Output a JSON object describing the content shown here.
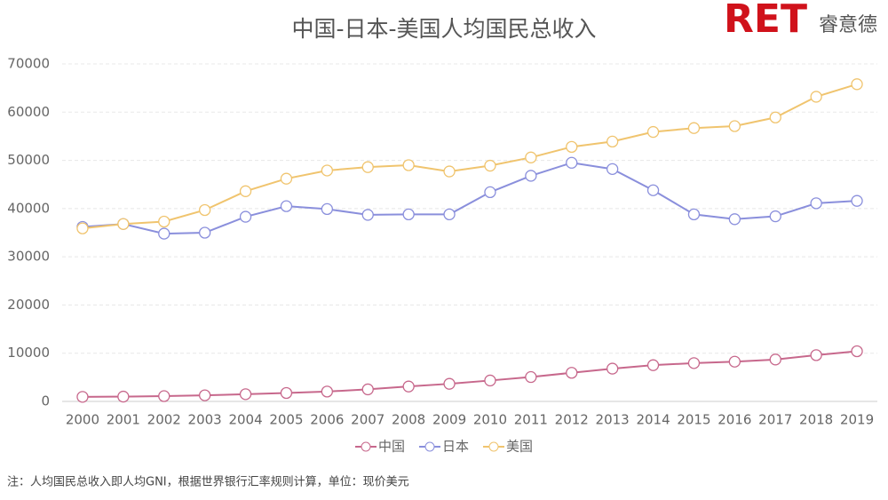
{
  "chart_data": {
    "type": "line",
    "title": "中国-日本-美国人均国民总收入",
    "logo": {
      "brand": "RET",
      "name": "睿意德"
    },
    "note": "注：人均国民总收入即人均GNI，根据世界银行汇率规则计算，单位：现价美元",
    "categories": [
      "2000",
      "2001",
      "2002",
      "2003",
      "2004",
      "2005",
      "2006",
      "2007",
      "2008",
      "2009",
      "2010",
      "2011",
      "2012",
      "2013",
      "2014",
      "2015",
      "2016",
      "2017",
      "2018",
      "2019"
    ],
    "series": [
      {
        "name": "中国",
        "color": "#c7688c",
        "values": [
          950,
          1000,
          1100,
          1270,
          1500,
          1750,
          2050,
          2500,
          3100,
          3650,
          4340,
          5060,
          5940,
          6800,
          7520,
          7950,
          8250,
          8690,
          9600,
          10410
        ]
      },
      {
        "name": "日本",
        "color": "#8a8fdc",
        "values": [
          36200,
          36800,
          34800,
          35000,
          38300,
          40500,
          39900,
          38700,
          38800,
          38800,
          43400,
          46800,
          49500,
          48200,
          43800,
          38800,
          37800,
          38400,
          41100,
          41600
        ]
      },
      {
        "name": "美国",
        "color": "#f0c46e",
        "values": [
          35900,
          36800,
          37300,
          39700,
          43600,
          46200,
          47900,
          48600,
          49000,
          47700,
          48900,
          50600,
          52800,
          53900,
          55900,
          56700,
          57100,
          58900,
          63200,
          65800
        ]
      }
    ],
    "ylim": [
      0,
      70000
    ],
    "yticks": [
      0,
      10000,
      20000,
      30000,
      40000,
      50000,
      60000,
      70000
    ],
    "grid": true
  }
}
